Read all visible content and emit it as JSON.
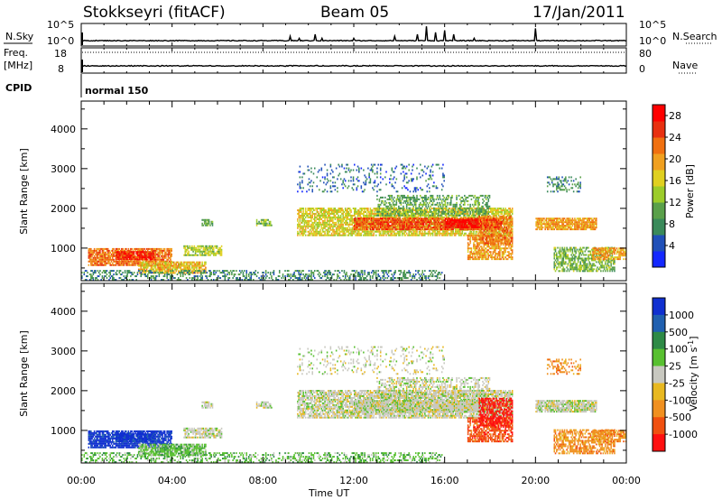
{
  "header": {
    "station": "Stokkseyri (fitACF)",
    "beam": "Beam 05",
    "date": "17/Jan/2011"
  },
  "strip": {
    "nsky_label": "N.Sky",
    "nsky_ticks": [
      "10^5",
      "10^0"
    ],
    "nsearch_label": "N.Search",
    "nsearch_ticks": [
      "10^5",
      "10^0"
    ],
    "freq_label_1": "Freq.",
    "freq_label_2": "[MHz]",
    "freq_ticks": [
      "18",
      "8"
    ],
    "nave_label": "Nave",
    "nave_ticks": [
      "80",
      "0"
    ],
    "cpid_label": "CPID",
    "cpid_value": "normal 150"
  },
  "colors": {
    "power": [
      "#1428ff",
      "#2050b8",
      "#3a8a5a",
      "#5aa04a",
      "#9ccc2a",
      "#e0d020",
      "#f0a020",
      "#f07010",
      "#e83010",
      "#ff0000"
    ],
    "velocity": [
      "#1030d0",
      "#2060b0",
      "#2e8a46",
      "#58c030",
      "#c8c8c0",
      "#e8b820",
      "#f09020",
      "#f05010",
      "#ff1010"
    ]
  },
  "chart_data": [
    {
      "type": "heatmap",
      "name": "power-panel",
      "xlabel": "",
      "ylabel": "Slant Range [km]",
      "x_ticks": [
        "00:00",
        "04:00",
        "08:00",
        "12:00",
        "16:00",
        "20:00",
        "00:00"
      ],
      "xlim_hours": [
        0,
        24
      ],
      "y_ticks": [
        1000,
        2000,
        3000,
        4000
      ],
      "ylim": [
        180,
        4700
      ],
      "colorbar": {
        "label": "Power [dB]",
        "ticks": [
          "28",
          "24",
          "20",
          "16",
          "12",
          "8",
          "4"
        ],
        "range": [
          0,
          30
        ]
      }
    },
    {
      "type": "heatmap",
      "name": "velocity-panel",
      "xlabel": "Time UT",
      "ylabel": "Slant Range [km]",
      "x_ticks": [
        "00:00",
        "04:00",
        "08:00",
        "12:00",
        "16:00",
        "20:00",
        "00:00"
      ],
      "xlim_hours": [
        0,
        24
      ],
      "y_ticks": [
        1000,
        2000,
        3000,
        4000
      ],
      "ylim": [
        180,
        4700
      ],
      "colorbar": {
        "label": "Velocity [m s^-1]",
        "ticks": [
          "1000",
          "500",
          "100",
          "25",
          "-25",
          "-100",
          "-500",
          "-1000"
        ]
      }
    }
  ],
  "echo_regions": [
    {
      "t0": 0.3,
      "t1": 4.0,
      "r0": 550,
      "r1": 1000,
      "pow": 22,
      "vel": 0,
      "dens": 0.8
    },
    {
      "t0": 1.5,
      "t1": 3.2,
      "r0": 700,
      "r1": 900,
      "pow": 26,
      "vel": 0,
      "dens": 0.9
    },
    {
      "t0": 2.5,
      "t1": 5.5,
      "r0": 350,
      "r1": 650,
      "pow": 18,
      "vel": 3,
      "dens": 0.8
    },
    {
      "t0": 4.5,
      "t1": 6.2,
      "r0": 800,
      "r1": 1050,
      "pow": 14,
      "vel": 4,
      "dens": 0.7
    },
    {
      "t0": 0.0,
      "t1": 16.0,
      "r0": 180,
      "r1": 450,
      "pow": 8,
      "vel": 3,
      "dens": 0.35
    },
    {
      "t0": 5.3,
      "t1": 5.8,
      "r0": 1550,
      "r1": 1700,
      "pow": 10,
      "vel": 4,
      "dens": 0.7
    },
    {
      "t0": 7.7,
      "t1": 8.4,
      "r0": 1550,
      "r1": 1700,
      "pow": 12,
      "vel": 4,
      "dens": 0.7
    },
    {
      "t0": 9.5,
      "t1": 19.0,
      "r0": 1300,
      "r1": 2000,
      "pow": 16,
      "vel": 4,
      "dens": 0.75
    },
    {
      "t0": 12.0,
      "t1": 18.5,
      "r0": 1450,
      "r1": 1750,
      "pow": 24,
      "vel": 4,
      "dens": 0.85
    },
    {
      "t0": 16.0,
      "t1": 18.5,
      "r0": 1500,
      "r1": 1700,
      "pow": 28,
      "vel": 4,
      "dens": 0.9
    },
    {
      "t0": 13.0,
      "t1": 18.0,
      "r0": 1800,
      "r1": 2300,
      "pow": 10,
      "vel": 4,
      "dens": 0.45
    },
    {
      "t0": 9.5,
      "t1": 16.0,
      "r0": 2400,
      "r1": 3100,
      "pow": 6,
      "vel": 4,
      "dens": 0.15
    },
    {
      "t0": 17.0,
      "t1": 19.0,
      "r0": 700,
      "r1": 1300,
      "pow": 20,
      "vel": 7,
      "dens": 0.7
    },
    {
      "t0": 17.5,
      "t1": 19.0,
      "r0": 1100,
      "r1": 1800,
      "pow": 22,
      "vel": 8,
      "dens": 0.6
    },
    {
      "t0": 20.0,
      "t1": 22.7,
      "r0": 1450,
      "r1": 1750,
      "pow": 20,
      "vel": 4,
      "dens": 0.85
    },
    {
      "t0": 20.5,
      "t1": 22.0,
      "r0": 2400,
      "r1": 2800,
      "pow": 8,
      "vel": 6,
      "dens": 0.25
    },
    {
      "t0": 20.8,
      "t1": 23.5,
      "r0": 400,
      "r1": 1000,
      "pow": 12,
      "vel": 6,
      "dens": 0.6
    },
    {
      "t0": 22.5,
      "t1": 24.0,
      "r0": 700,
      "r1": 1000,
      "pow": 20,
      "vel": 6,
      "dens": 0.7
    }
  ],
  "nsky_spikes": [
    {
      "t": 9.2,
      "v": 0.4
    },
    {
      "t": 9.6,
      "v": 0.3
    },
    {
      "t": 10.3,
      "v": 0.5
    },
    {
      "t": 10.6,
      "v": 0.3
    },
    {
      "t": 12.0,
      "v": 0.3
    },
    {
      "t": 13.8,
      "v": 0.4
    },
    {
      "t": 14.8,
      "v": 0.5
    },
    {
      "t": 15.2,
      "v": 0.9
    },
    {
      "t": 15.6,
      "v": 0.6
    },
    {
      "t": 16.0,
      "v": 0.7
    },
    {
      "t": 16.4,
      "v": 0.5
    },
    {
      "t": 17.3,
      "v": 0.3
    },
    {
      "t": 20.0,
      "v": 0.8
    }
  ]
}
